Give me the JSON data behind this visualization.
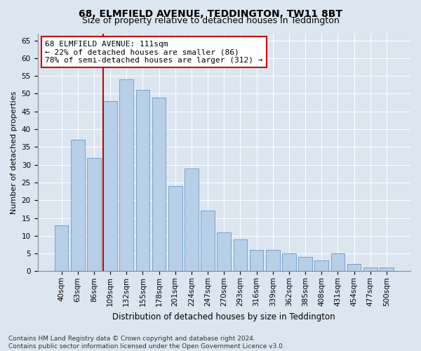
{
  "title": "68, ELMFIELD AVENUE, TEDDINGTON, TW11 8BT",
  "subtitle": "Size of property relative to detached houses in Teddington",
  "xlabel": "Distribution of detached houses by size in Teddington",
  "ylabel": "Number of detached properties",
  "categories": [
    "40sqm",
    "63sqm",
    "86sqm",
    "109sqm",
    "132sqm",
    "155sqm",
    "178sqm",
    "201sqm",
    "224sqm",
    "247sqm",
    "270sqm",
    "293sqm",
    "316sqm",
    "339sqm",
    "362sqm",
    "385sqm",
    "408sqm",
    "431sqm",
    "454sqm",
    "477sqm",
    "500sqm"
  ],
  "values": [
    13,
    37,
    32,
    48,
    54,
    51,
    49,
    24,
    29,
    17,
    11,
    9,
    6,
    6,
    5,
    4,
    3,
    5,
    2,
    1,
    1
  ],
  "bar_color": "#b8cfe8",
  "bar_edge_color": "#6699cc",
  "property_line_index": 3,
  "property_line_color": "#cc0000",
  "annotation_line1": "68 ELMFIELD AVENUE: 111sqm",
  "annotation_line2": "← 22% of detached houses are smaller (86)",
  "annotation_line3": "78% of semi-detached houses are larger (312) →",
  "annotation_box_color": "#ffffff",
  "annotation_box_edge": "#cc0000",
  "ylim": [
    0,
    67
  ],
  "yticks": [
    0,
    5,
    10,
    15,
    20,
    25,
    30,
    35,
    40,
    45,
    50,
    55,
    60,
    65
  ],
  "background_color": "#dce6f0",
  "footer": "Contains HM Land Registry data © Crown copyright and database right 2024.\nContains public sector information licensed under the Open Government Licence v3.0.",
  "title_fontsize": 10,
  "subtitle_fontsize": 9,
  "xlabel_fontsize": 8.5,
  "ylabel_fontsize": 8,
  "tick_fontsize": 7.5,
  "annotation_fontsize": 8,
  "footer_fontsize": 6.5
}
